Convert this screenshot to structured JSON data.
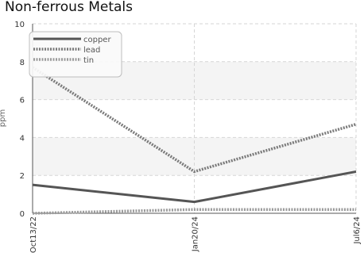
{
  "chart_data": {
    "type": "line",
    "title": "Non-ferrous Metals",
    "xlabel": "",
    "ylabel": "ppm",
    "categories": [
      "Oct13/22",
      "Jan20/24",
      "Jul6/24"
    ],
    "ylim": [
      0,
      10
    ],
    "yticks": [
      0,
      2,
      4,
      6,
      8,
      10
    ],
    "grid": true,
    "legend_position": "top-left",
    "series": [
      {
        "name": "copper",
        "values": [
          1.5,
          0.6,
          2.2
        ],
        "color": "#555555",
        "style": "solid"
      },
      {
        "name": "lead",
        "values": [
          7.7,
          2.2,
          4.7
        ],
        "color": "#7a7a7a",
        "style": "dotted"
      },
      {
        "name": "tin",
        "values": [
          0.0,
          0.2,
          0.2
        ],
        "color": "#9a9a9a",
        "style": "dotted"
      }
    ]
  }
}
